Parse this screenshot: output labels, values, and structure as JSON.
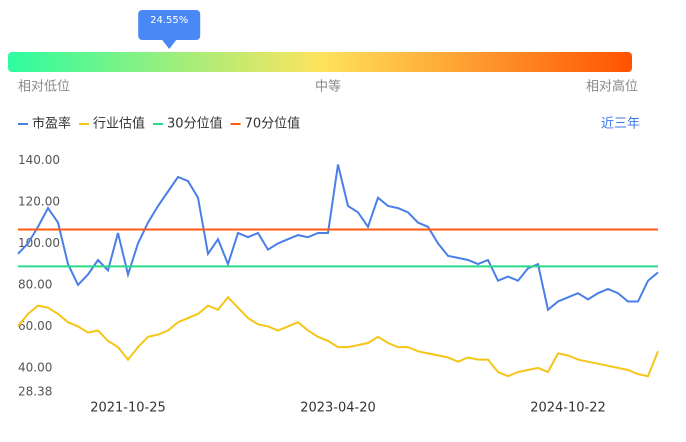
{
  "percentile": {
    "value": 24.55,
    "label": "24.55%",
    "low": "相对低位",
    "mid": "中等",
    "high": "相对高位"
  },
  "period": "近三年",
  "chart_data": {
    "type": "line",
    "categories": [
      null,
      null,
      null,
      null,
      null,
      null,
      null,
      null,
      null,
      null,
      null,
      "2021-10-25",
      null,
      null,
      null,
      null,
      null,
      null,
      null,
      null,
      null,
      null,
      null,
      null,
      null,
      null,
      null,
      null,
      null,
      null,
      null,
      null,
      "2023-04-20",
      null,
      null,
      null,
      null,
      null,
      null,
      null,
      null,
      null,
      null,
      null,
      null,
      null,
      null,
      null,
      null,
      null,
      null,
      null,
      null,
      null,
      null,
      "2024-10-22",
      null,
      null,
      null,
      null,
      null,
      null,
      null,
      null,
      null
    ],
    "series": [
      {
        "name": "市盈率",
        "color": "#4a7fe8",
        "values": [
          95,
          100,
          108,
          117,
          110,
          90,
          80,
          85,
          92,
          87,
          105,
          85,
          100,
          110,
          118,
          125,
          132,
          130,
          122,
          95,
          102,
          90,
          105,
          103,
          105,
          97,
          100,
          102,
          104,
          103,
          105,
          105,
          138,
          118,
          115,
          108,
          122,
          118,
          117,
          115,
          110,
          108,
          100,
          94,
          93,
          92,
          90,
          92,
          82,
          84,
          82,
          88,
          90,
          68,
          72,
          74,
          76,
          73,
          76,
          78,
          76,
          72,
          72,
          82,
          86
        ]
      },
      {
        "name": "行业估值",
        "color": "#f5c518",
        "values": [
          60,
          66,
          70,
          69,
          66,
          62,
          60,
          57,
          58,
          53,
          50,
          44,
          50,
          55,
          56,
          58,
          62,
          64,
          66,
          70,
          68,
          74,
          69,
          64,
          61,
          60,
          58,
          60,
          62,
          58,
          55,
          53,
          50,
          50,
          51,
          52,
          55,
          52,
          50,
          50,
          48,
          47,
          46,
          45,
          43,
          45,
          44,
          44,
          38,
          36,
          38,
          39,
          40,
          38,
          47,
          46,
          44,
          43,
          42,
          41,
          40,
          39,
          37,
          36,
          48
        ]
      },
      {
        "name": "30分位值",
        "color": "#2bd98a",
        "values": [
          88.9,
          88.9,
          88.9,
          88.9,
          88.9,
          88.9,
          88.9,
          88.9,
          88.9,
          88.9,
          88.9,
          88.9,
          88.9,
          88.9,
          88.9,
          88.9,
          88.9,
          88.9,
          88.9,
          88.9,
          88.9,
          88.9,
          88.9,
          88.9,
          88.9,
          88.9,
          88.9,
          88.9,
          88.9,
          88.9,
          88.9,
          88.9,
          88.9,
          88.9,
          88.9,
          88.9,
          88.9,
          88.9,
          88.9,
          88.9,
          88.9,
          88.9,
          88.9,
          88.9,
          88.9,
          88.9,
          88.9,
          88.9,
          88.9,
          88.9,
          88.9,
          88.9,
          88.9,
          88.9,
          88.9,
          88.9,
          88.9,
          88.9,
          88.9,
          88.9,
          88.9,
          88.9,
          88.9,
          88.9,
          88.9
        ]
      },
      {
        "name": "70分位值",
        "color": "#ff5a14",
        "values": [
          106.7,
          106.7,
          106.7,
          106.7,
          106.7,
          106.7,
          106.7,
          106.7,
          106.7,
          106.7,
          106.7,
          106.7,
          106.7,
          106.7,
          106.7,
          106.7,
          106.7,
          106.7,
          106.7,
          106.7,
          106.7,
          106.7,
          106.7,
          106.7,
          106.7,
          106.7,
          106.7,
          106.7,
          106.7,
          106.7,
          106.7,
          106.7,
          106.7,
          106.7,
          106.7,
          106.7,
          106.7,
          106.7,
          106.7,
          106.7,
          106.7,
          106.7,
          106.7,
          106.7,
          106.7,
          106.7,
          106.7,
          106.7,
          106.7,
          106.7,
          106.7,
          106.7,
          106.7,
          106.7,
          106.7,
          106.7,
          106.7,
          106.7,
          106.7,
          106.7,
          106.7,
          106.7,
          106.7,
          106.7,
          106.7
        ]
      }
    ],
    "ylim": [
      28.38,
      145
    ],
    "yticks": [
      28.38,
      {
        "value": 40,
        "label": "40.00"
      },
      {
        "value": 60,
        "label": "60.00"
      },
      {
        "value": 80,
        "label": "80.00"
      },
      {
        "value": 100,
        "label": "100.00"
      },
      {
        "value": 120,
        "label": "120.00"
      },
      {
        "value": 140,
        "label": "140.00"
      }
    ],
    "grid": false
  }
}
